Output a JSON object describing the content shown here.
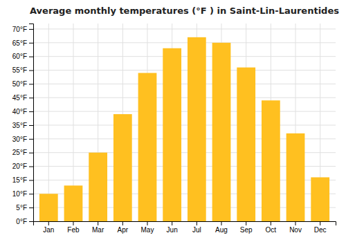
{
  "chart_data": {
    "type": "bar",
    "title": "Average monthly temperatures (°F ) in Saint-Lin-Laurentides",
    "categories": [
      "Jan",
      "Feb",
      "Mar",
      "Apr",
      "May",
      "Jun",
      "Jul",
      "Aug",
      "Sep",
      "Oct",
      "Nov",
      "Dec"
    ],
    "values": [
      10,
      13,
      25,
      39,
      54,
      63,
      67,
      65,
      56,
      44,
      32,
      16
    ],
    "color": "#FFC020",
    "ylim": [
      0,
      72
    ],
    "yticks": [
      {
        "value": 0,
        "label": "0°F"
      },
      {
        "value": 5,
        "label": "5°F"
      },
      {
        "value": 10,
        "label": "10°F"
      },
      {
        "value": 15,
        "label": "15°F"
      },
      {
        "value": 20,
        "label": "20°F"
      },
      {
        "value": 25,
        "label": "25°F"
      },
      {
        "value": 30,
        "label": "30°F"
      },
      {
        "value": 35,
        "label": "35°F"
      },
      {
        "value": 40,
        "label": "40°F"
      },
      {
        "value": 45,
        "label": "45°F"
      },
      {
        "value": 50,
        "label": "50°F"
      },
      {
        "value": 55,
        "label": "55°F"
      },
      {
        "value": 60,
        "label": "60°F"
      },
      {
        "value": 65,
        "label": "65°F"
      },
      {
        "value": 70,
        "label": "70°F"
      }
    ],
    "grid": true
  }
}
